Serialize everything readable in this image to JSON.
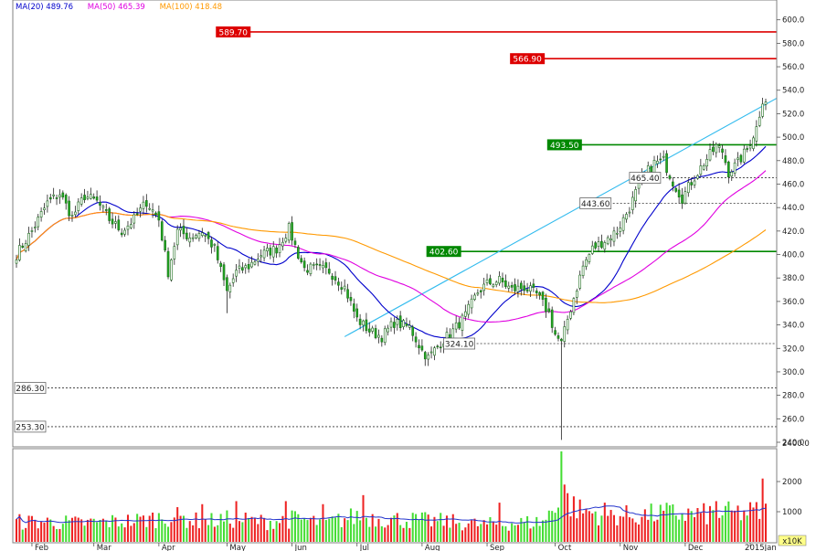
{
  "chart_data": {
    "type": "candlestick",
    "ma_legend": [
      {
        "name": "MA(20)",
        "value": "489.76",
        "color": "#0000cc"
      },
      {
        "name": "MA(50)",
        "value": "465.39",
        "color": "#e000e0"
      },
      {
        "name": "MA(100)",
        "value": "418.48",
        "color": "#ff9900"
      }
    ],
    "price_axis": {
      "min": 240,
      "max": 620,
      "step": 20,
      "labels": [
        "240.0",
        "260.0",
        "280.0",
        "300.0",
        "320.0",
        "340.0",
        "360.0",
        "380.0",
        "400.0",
        "420.0",
        "440.0",
        "460.0",
        "480.0",
        "500.0",
        "520.0",
        "540.0",
        "560.0",
        "580.0",
        "600.0",
        "620.0"
      ]
    },
    "volume_axis": {
      "min": 0,
      "max": 2700,
      "ticks": [
        1000,
        2000
      ],
      "labels": [
        "1000",
        "2000"
      ],
      "unit_label": "x10K",
      "top_label": "2400.0"
    },
    "months": [
      {
        "label": "Feb",
        "index": 5
      },
      {
        "label": "Mar",
        "index": 25
      },
      {
        "label": "Apr",
        "index": 46
      },
      {
        "label": "May",
        "index": 68
      },
      {
        "label": "Jun",
        "index": 89
      },
      {
        "label": "Jul",
        "index": 110
      },
      {
        "label": "Aug",
        "index": 131
      },
      {
        "label": "Sep",
        "index": 152
      },
      {
        "label": "Oct",
        "index": 174
      },
      {
        "label": "Nov",
        "index": 195
      },
      {
        "label": "Dec",
        "index": 216
      },
      {
        "label": "2015Jan",
        "index": 237
      }
    ],
    "resistance_lines": [
      {
        "value": 589.7,
        "label": "589.70",
        "color": "#dd0000",
        "label_index": 65
      },
      {
        "value": 566.9,
        "label": "566.90",
        "color": "#dd0000",
        "label_index": 160
      },
      {
        "value": 493.5,
        "label": "493.50",
        "color": "#008800",
        "label_index": 172
      },
      {
        "value": 402.6,
        "label": "402.60",
        "color": "#008800",
        "label_index": 133
      }
    ],
    "dashed_levels": [
      {
        "value": 465.4,
        "label": "465.40",
        "label_index": 198
      },
      {
        "value": 443.6,
        "label": "443.60",
        "label_index": 182
      },
      {
        "value": 324.1,
        "label": "324.10",
        "label_index": 138
      },
      {
        "value": 286.3,
        "label": "286.30",
        "label_index": 0
      },
      {
        "value": 253.3,
        "label": "253.30",
        "label_index": 0
      }
    ],
    "trendline": {
      "from": {
        "index": 106,
        "value": 330
      },
      "to": {
        "index": 253,
        "value": 544
      },
      "color": "#33bbee"
    },
    "anchors": [
      [
        0,
        400
      ],
      [
        5,
        420
      ],
      [
        10,
        444
      ],
      [
        14,
        452
      ],
      [
        18,
        432
      ],
      [
        22,
        450
      ],
      [
        26,
        445
      ],
      [
        30,
        430
      ],
      [
        34,
        420
      ],
      [
        38,
        430
      ],
      [
        42,
        445
      ],
      [
        46,
        430
      ],
      [
        49,
        385
      ],
      [
        52,
        420
      ],
      [
        56,
        415
      ],
      [
        60,
        420
      ],
      [
        64,
        405
      ],
      [
        68,
        368
      ],
      [
        71,
        385
      ],
      [
        75,
        390
      ],
      [
        79,
        400
      ],
      [
        84,
        405
      ],
      [
        88,
        422
      ],
      [
        91,
        400
      ],
      [
        93,
        388
      ],
      [
        97,
        388
      ],
      [
        101,
        386
      ],
      [
        106,
        372
      ],
      [
        110,
        345
      ],
      [
        114,
        335
      ],
      [
        118,
        330
      ],
      [
        122,
        342
      ],
      [
        127,
        338
      ],
      [
        131,
        318
      ],
      [
        133,
        312
      ],
      [
        137,
        325
      ],
      [
        141,
        335
      ],
      [
        145,
        348
      ],
      [
        149,
        368
      ],
      [
        152,
        375
      ],
      [
        156,
        378
      ],
      [
        160,
        370
      ],
      [
        164,
        372
      ],
      [
        168,
        366
      ],
      [
        172,
        350
      ],
      [
        174,
        332
      ],
      [
        176,
        324
      ],
      [
        178,
        345
      ],
      [
        181,
        372
      ],
      [
        183,
        390
      ],
      [
        186,
        405
      ],
      [
        190,
        412
      ],
      [
        194,
        420
      ],
      [
        198,
        440
      ],
      [
        202,
        465
      ],
      [
        206,
        478
      ],
      [
        209,
        480
      ],
      [
        212,
        462
      ],
      [
        215,
        448
      ],
      [
        218,
        462
      ],
      [
        222,
        478
      ],
      [
        226,
        492
      ],
      [
        228,
        488
      ],
      [
        230,
        470
      ],
      [
        233,
        478
      ],
      [
        236,
        490
      ],
      [
        239,
        508
      ],
      [
        241,
        532
      ]
    ],
    "volume_anchors": [
      [
        0,
        700
      ],
      [
        10,
        700
      ],
      [
        20,
        650
      ],
      [
        30,
        700
      ],
      [
        40,
        750
      ],
      [
        50,
        900
      ],
      [
        60,
        700
      ],
      [
        70,
        800
      ],
      [
        80,
        700
      ],
      [
        90,
        800
      ],
      [
        100,
        650
      ],
      [
        110,
        900
      ],
      [
        120,
        800
      ],
      [
        130,
        750
      ],
      [
        140,
        700
      ],
      [
        150,
        600
      ],
      [
        160,
        650
      ],
      [
        170,
        700
      ],
      [
        174,
        1200
      ],
      [
        176,
        2300
      ],
      [
        178,
        1400
      ],
      [
        182,
        1100
      ],
      [
        190,
        950
      ],
      [
        200,
        900
      ],
      [
        210,
        1000
      ],
      [
        220,
        950
      ],
      [
        230,
        1000
      ],
      [
        241,
        1050
      ]
    ],
    "volume_spikes": [
      [
        176,
        3000
      ],
      [
        177,
        1900
      ],
      [
        112,
        1550
      ],
      [
        71,
        1350
      ],
      [
        87,
        1350
      ],
      [
        60,
        1250
      ],
      [
        99,
        1250
      ],
      [
        190,
        1300
      ],
      [
        226,
        1350
      ],
      [
        241,
        2100
      ],
      [
        156,
        1300
      ]
    ]
  }
}
